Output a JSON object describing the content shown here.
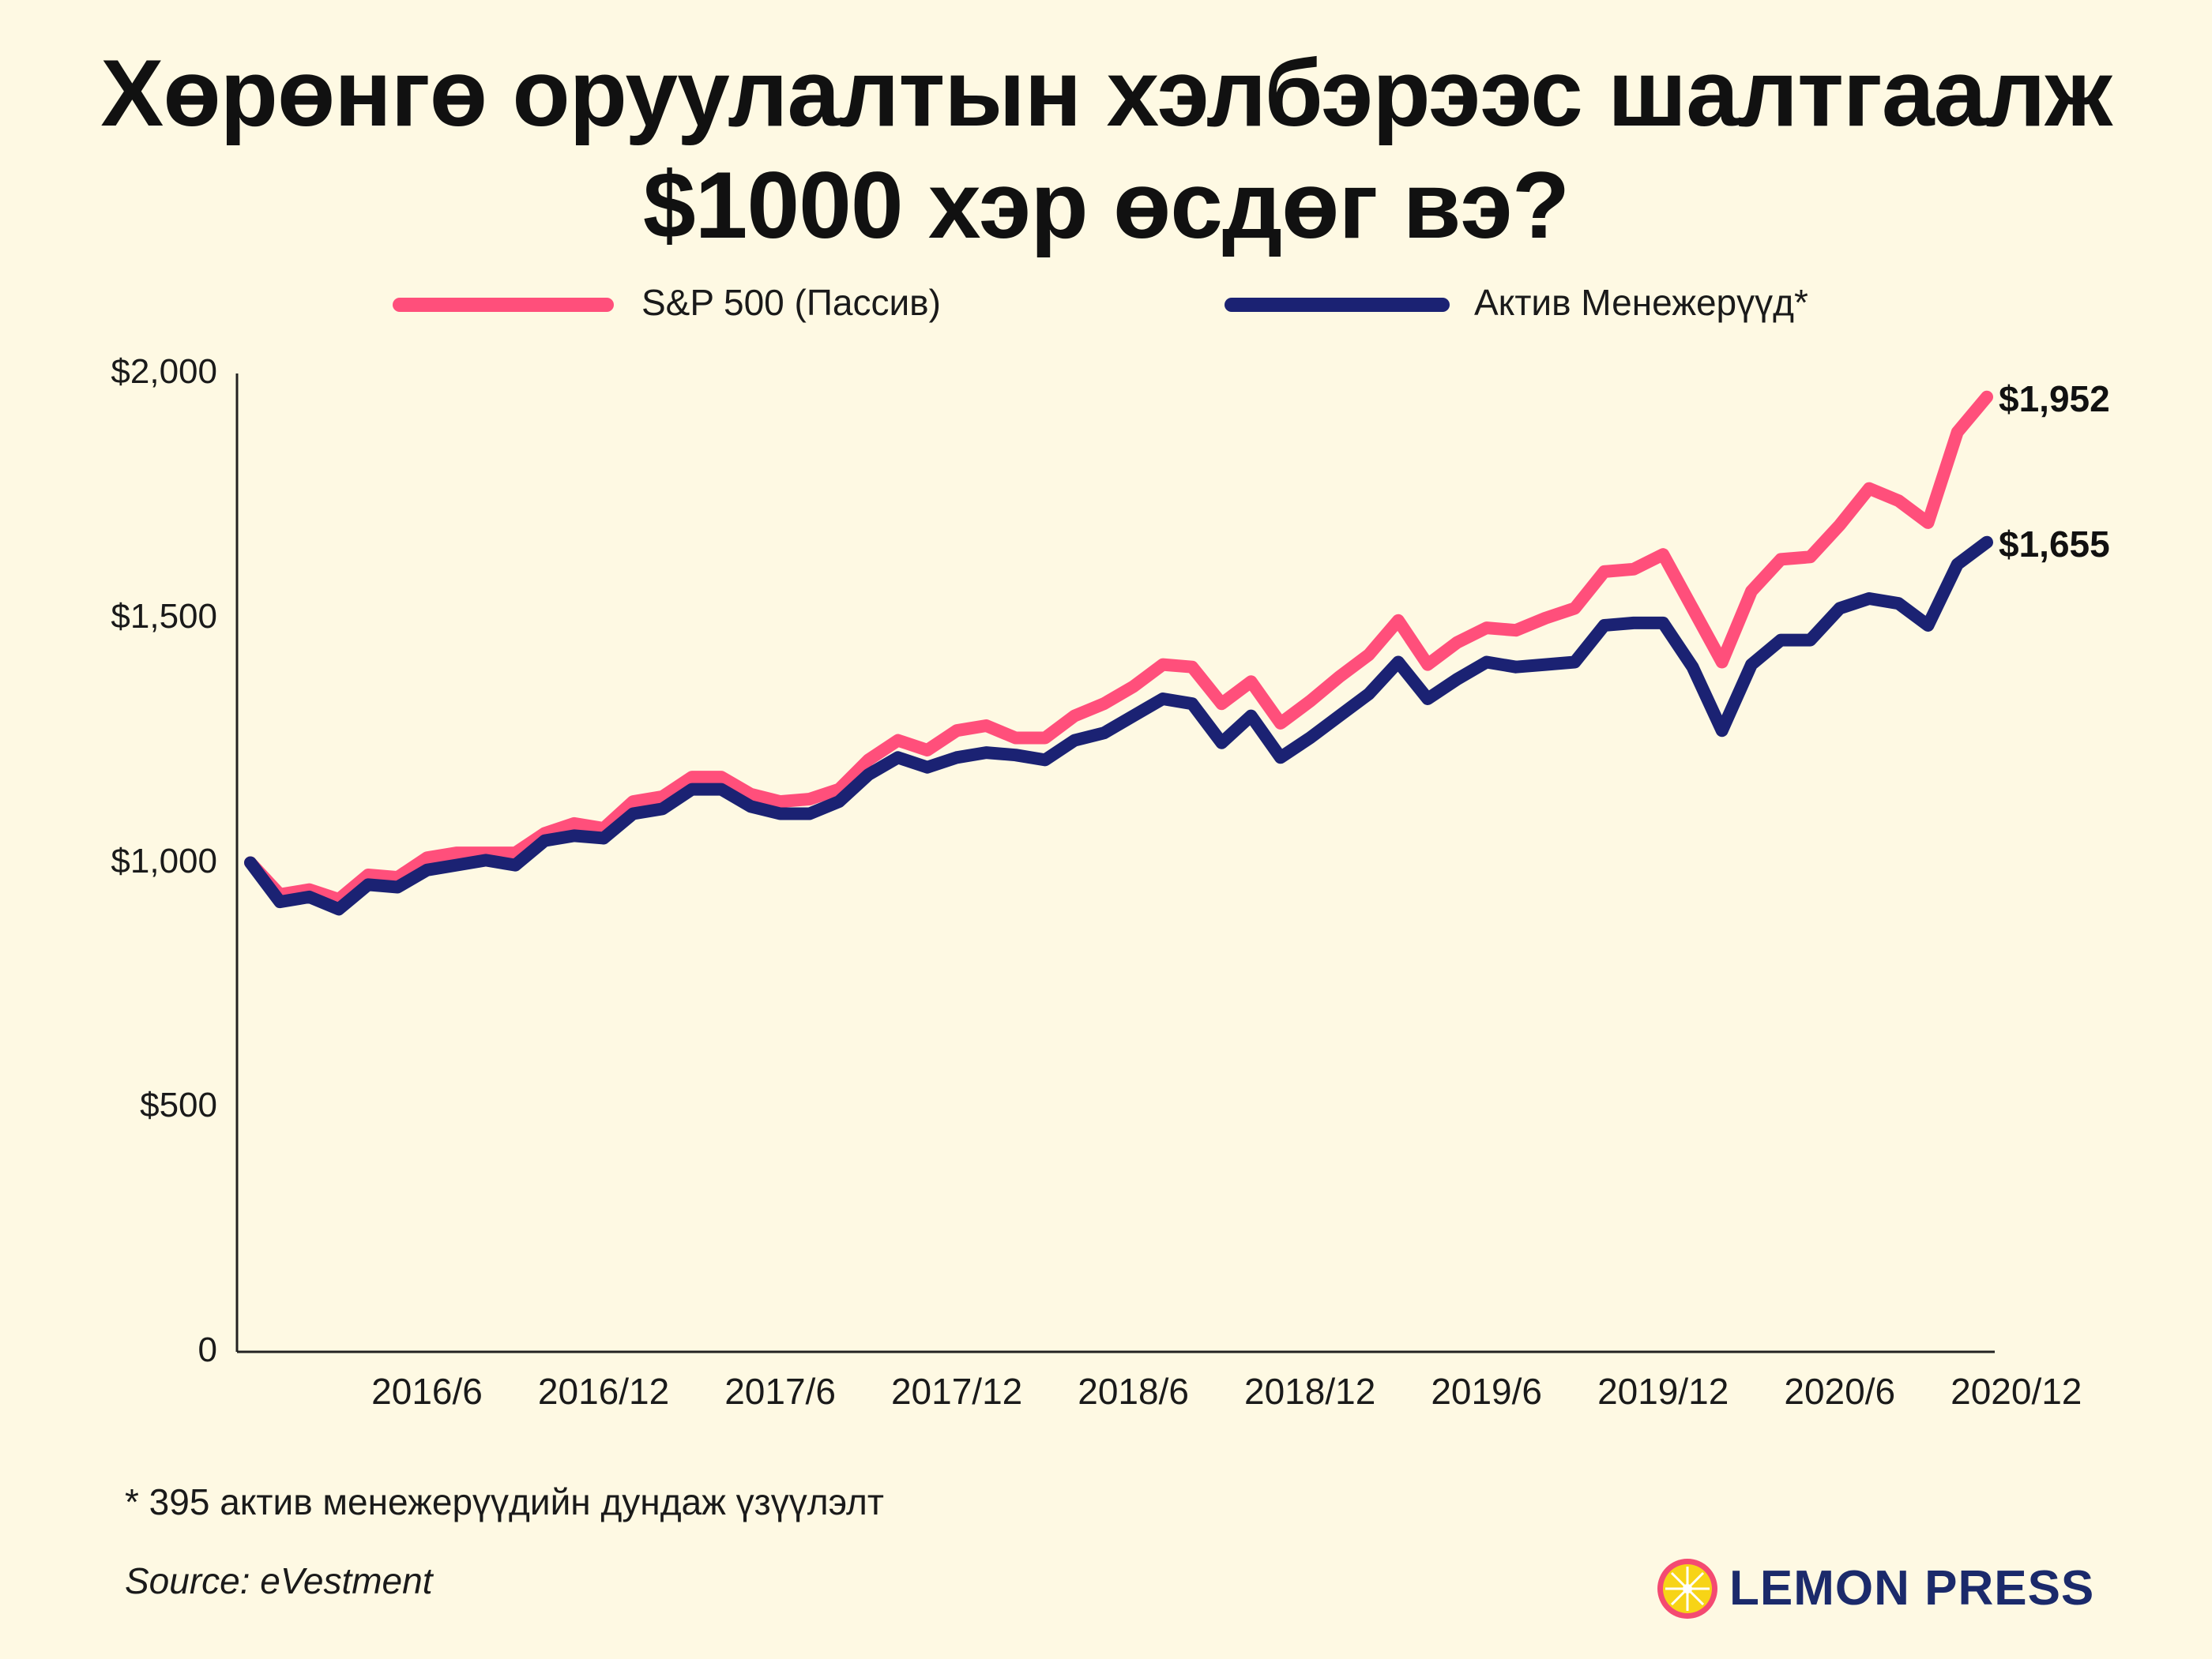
{
  "title": {
    "line1": "Хөрөнгө оруулалтын хэлбэрээс шалтгаалж",
    "line2": "$1000 хэр өсдөг вэ?"
  },
  "legend": [
    {
      "label": "S&P 500 (Пассив)",
      "color": "#FF4F7B"
    },
    {
      "label": "Актив Менежерүүд*",
      "color": "#1B2273"
    }
  ],
  "chart_data": {
    "type": "line",
    "title": "Хөрөнгө оруулалтын хэлбэрээс шалтгаалж $1000 хэр өсдөг вэ?",
    "xlabel": "",
    "ylabel": "",
    "ylim": [
      0,
      2000
    ],
    "yticks": [
      0,
      500,
      1000,
      1500,
      2000
    ],
    "ytick_labels": [
      "0",
      "$500",
      "$1,000",
      "$1,500",
      "$2,000"
    ],
    "x_start": "2015/12",
    "x_step": "1 month",
    "x_tick_labels": [
      "2016/6",
      "2016/12",
      "2017/6",
      "2017/12",
      "2018/6",
      "2018/12",
      "2019/6",
      "2019/12",
      "2020/6",
      "2020/12"
    ],
    "x_tick_index": [
      6,
      12,
      18,
      24,
      30,
      36,
      42,
      48,
      54,
      60
    ],
    "grid": false,
    "legend_position": "top",
    "series": [
      {
        "name": "S&P 500 (Пассив)",
        "color": "#FF4F7B",
        "end_label": "$1,952",
        "values": [
          1000,
          935,
          945,
          925,
          975,
          970,
          1010,
          1020,
          1020,
          1020,
          1060,
          1080,
          1070,
          1125,
          1135,
          1175,
          1175,
          1140,
          1125,
          1130,
          1150,
          1210,
          1250,
          1230,
          1270,
          1280,
          1255,
          1255,
          1300,
          1325,
          1360,
          1405,
          1400,
          1325,
          1370,
          1285,
          1330,
          1380,
          1425,
          1495,
          1405,
          1450,
          1480,
          1475,
          1500,
          1520,
          1595,
          1600,
          1630,
          1520,
          1410,
          1555,
          1620,
          1625,
          1690,
          1765,
          1740,
          1695,
          1880,
          1952
        ]
      },
      {
        "name": "Актив Менежерүүд*",
        "color": "#1B2273",
        "end_label": "$1,655",
        "values": [
          1000,
          920,
          930,
          905,
          955,
          950,
          985,
          995,
          1005,
          995,
          1045,
          1055,
          1050,
          1100,
          1110,
          1150,
          1150,
          1115,
          1100,
          1100,
          1125,
          1180,
          1215,
          1195,
          1215,
          1225,
          1220,
          1210,
          1250,
          1265,
          1300,
          1335,
          1325,
          1245,
          1300,
          1215,
          1255,
          1300,
          1345,
          1410,
          1335,
          1375,
          1410,
          1400,
          1405,
          1410,
          1485,
          1490,
          1490,
          1400,
          1270,
          1405,
          1455,
          1455,
          1520,
          1540,
          1530,
          1485,
          1610,
          1655
        ]
      }
    ]
  },
  "footnote": "* 395 актив менежерүүдийн дундаж үзүүлэлт",
  "source": "Source: eVestment",
  "logo": {
    "text": "LEMON PRESS",
    "icon": "lemon-slice-icon",
    "icon_color": "#F7D416",
    "ring_color": "#F44A72"
  }
}
